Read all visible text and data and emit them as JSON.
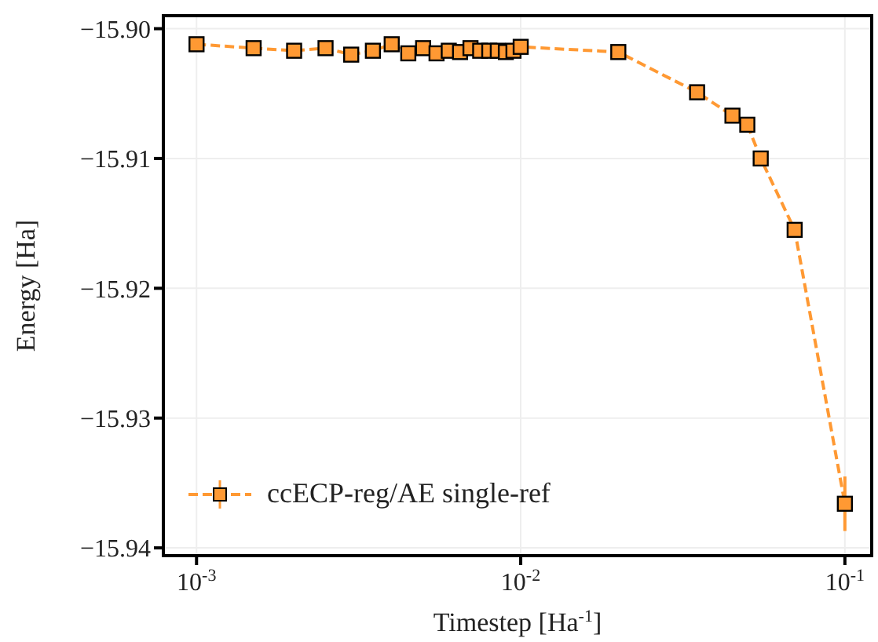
{
  "chart_data": {
    "type": "line",
    "xlabel": "Timestep [Ha$^{-1}$]",
    "ylabel": "Energy [Ha]",
    "x": [
      0.001,
      0.0015,
      0.002,
      0.0025,
      0.003,
      0.0035,
      0.004,
      0.0045,
      0.005,
      0.0055,
      0.006,
      0.0065,
      0.007,
      0.0075,
      0.008,
      0.0085,
      0.009,
      0.0095,
      0.01,
      0.02,
      0.035,
      0.045,
      0.05,
      0.055,
      0.07,
      0.1
    ],
    "series": [
      {
        "name": "ccECP-reg/AE single-ref",
        "color": "#ff9933",
        "values": [
          -15.9012,
          -15.9015,
          -15.9017,
          -15.9015,
          -15.902,
          -15.9017,
          -15.9012,
          -15.9019,
          -15.9015,
          -15.9019,
          -15.9017,
          -15.9018,
          -15.9015,
          -15.9017,
          -15.9017,
          -15.9017,
          -15.9018,
          -15.9017,
          -15.9014,
          -15.9018,
          -15.9049,
          -15.9067,
          -15.9074,
          -15.91,
          -15.9155,
          -15.9366
        ],
        "errors": [
          null,
          null,
          null,
          null,
          null,
          null,
          null,
          null,
          null,
          null,
          null,
          null,
          null,
          null,
          null,
          null,
          null,
          null,
          null,
          null,
          null,
          null,
          null,
          null,
          0.0005,
          0.0021
        ]
      }
    ],
    "log": "x",
    "xlim": [
      0.00079,
      0.121
    ],
    "xticks": [
      {
        "value": 0.001,
        "label": "10$^{-3}$"
      },
      {
        "value": 0.01,
        "label": "10$^{-2}$"
      },
      {
        "value": 0.1,
        "label": "10$^{-1}$"
      }
    ],
    "ylim": [
      -15.9406,
      -15.899
    ],
    "yticks": [
      {
        "value": -15.94,
        "label": "−15.94"
      },
      {
        "value": -15.93,
        "label": "−15.93"
      },
      {
        "value": -15.92,
        "label": "−15.92"
      },
      {
        "value": -15.91,
        "label": "−15.91"
      },
      {
        "value": -15.9,
        "label": "−15.90"
      }
    ],
    "grid": true,
    "legend": "bottom left",
    "marker": "square",
    "line_style": "dashed"
  }
}
